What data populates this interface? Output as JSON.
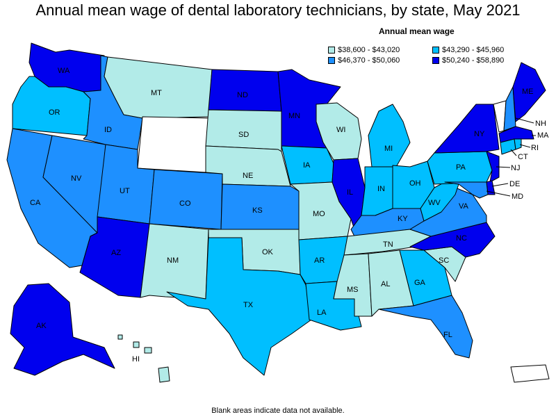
{
  "title": "Annual mean wage of dental laboratory technicians, by state, May 2021",
  "legend": {
    "title": "Annual mean wage",
    "items": [
      {
        "label": "$38,600 - $43,020",
        "color": "#b2ebe8"
      },
      {
        "label": "$43,290 - $45,960",
        "color": "#00bfff"
      },
      {
        "label": "$46,370 - $50,060",
        "color": "#1e90ff"
      },
      {
        "label": "$50,240 - $58,890",
        "color": "#0000ee"
      }
    ]
  },
  "footer": "Blank areas indicate data not available.",
  "colors": {
    "tier1": "#b2ebe8",
    "tier2": "#00bfff",
    "tier3": "#1e90ff",
    "tier4": "#0000ee",
    "none": "#ffffff"
  },
  "states": {
    "WA": {
      "label": "WA",
      "tier": "tier4"
    },
    "OR": {
      "label": "OR",
      "tier": "tier2"
    },
    "CA": {
      "label": "CA",
      "tier": "tier3"
    },
    "NV": {
      "label": "NV",
      "tier": "tier3"
    },
    "ID": {
      "label": "ID",
      "tier": "tier3"
    },
    "MT": {
      "label": "MT",
      "tier": "tier1"
    },
    "WY": {
      "label": "",
      "tier": "none"
    },
    "UT": {
      "label": "UT",
      "tier": "tier3"
    },
    "AZ": {
      "label": "AZ",
      "tier": "tier4"
    },
    "CO": {
      "label": "CO",
      "tier": "tier3"
    },
    "NM": {
      "label": "NM",
      "tier": "tier1"
    },
    "ND": {
      "label": "ND",
      "tier": "tier4"
    },
    "SD": {
      "label": "SD",
      "tier": "tier1"
    },
    "NE": {
      "label": "NE",
      "tier": "tier1"
    },
    "KS": {
      "label": "KS",
      "tier": "tier3"
    },
    "OK": {
      "label": "OK",
      "tier": "tier1"
    },
    "TX": {
      "label": "TX",
      "tier": "tier2"
    },
    "MN": {
      "label": "MN",
      "tier": "tier4"
    },
    "IA": {
      "label": "IA",
      "tier": "tier2"
    },
    "MO": {
      "label": "MO",
      "tier": "tier1"
    },
    "AR": {
      "label": "AR",
      "tier": "tier2"
    },
    "LA": {
      "label": "LA",
      "tier": "tier2"
    },
    "WI": {
      "label": "WI",
      "tier": "tier1"
    },
    "IL": {
      "label": "IL",
      "tier": "tier4"
    },
    "MI": {
      "label": "MI",
      "tier": "tier2"
    },
    "IN": {
      "label": "IN",
      "tier": "tier2"
    },
    "OH": {
      "label": "OH",
      "tier": "tier2"
    },
    "KY": {
      "label": "KY",
      "tier": "tier3"
    },
    "TN": {
      "label": "TN",
      "tier": "tier1"
    },
    "MS": {
      "label": "MS",
      "tier": "tier1"
    },
    "AL": {
      "label": "AL",
      "tier": "tier1"
    },
    "GA": {
      "label": "GA",
      "tier": "tier2"
    },
    "FL": {
      "label": "FL",
      "tier": "tier3"
    },
    "SC": {
      "label": "SC",
      "tier": "tier1"
    },
    "NC": {
      "label": "NC",
      "tier": "tier4"
    },
    "VA": {
      "label": "VA",
      "tier": "tier3"
    },
    "WV": {
      "label": "WV",
      "tier": "tier2"
    },
    "PA": {
      "label": "PA",
      "tier": "tier2"
    },
    "NY": {
      "label": "NY",
      "tier": "tier4"
    },
    "VT": {
      "label": "",
      "tier": "none"
    },
    "NH": {
      "label": "NH",
      "tier": "tier3"
    },
    "ME": {
      "label": "ME",
      "tier": "tier4"
    },
    "MA": {
      "label": "MA",
      "tier": "tier4"
    },
    "CT": {
      "label": "CT",
      "tier": "tier2"
    },
    "RI": {
      "label": "RI",
      "tier": "tier2"
    },
    "NJ": {
      "label": "NJ",
      "tier": "tier4"
    },
    "DE": {
      "label": "DE",
      "tier": "tier4"
    },
    "MD": {
      "label": "MD",
      "tier": "tier3"
    },
    "AK": {
      "label": "AK",
      "tier": "tier4"
    },
    "HI": {
      "label": "HI",
      "tier": "tier1"
    },
    "PR": {
      "label": "",
      "tier": "none"
    }
  }
}
